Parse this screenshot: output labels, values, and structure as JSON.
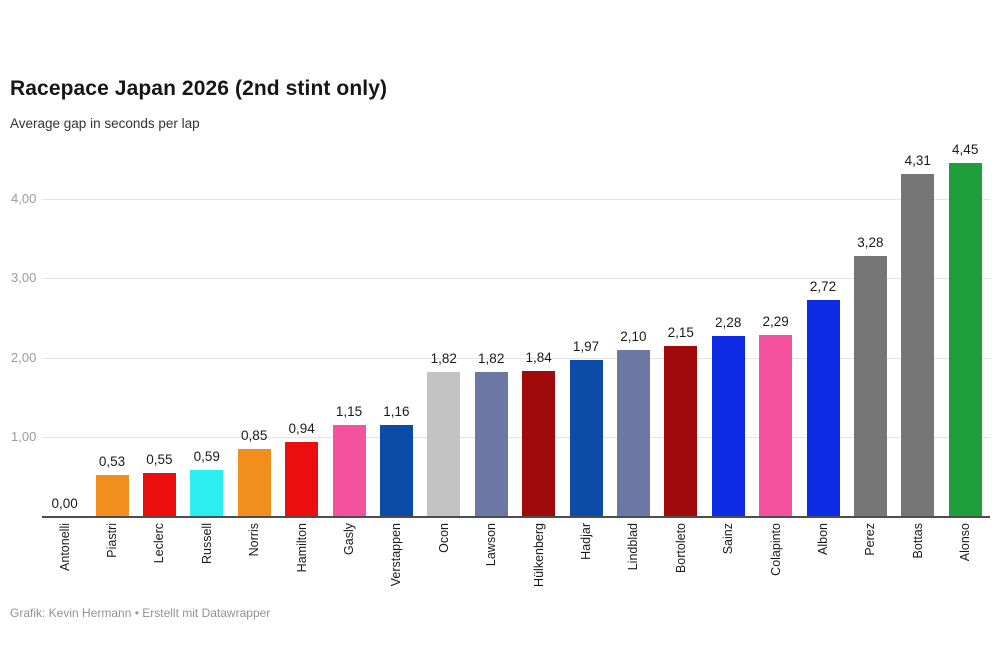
{
  "header": {
    "title": "Racepace Japan 2026 (2nd stint only)",
    "subtitle": "Average gap in seconds per lap"
  },
  "footer": {
    "credit": "Grafik: Kevin Hermann • Erstellt mit Datawrapper"
  },
  "colors": {
    "background": "#ffffff",
    "axis_line": "#4d4d4d",
    "gridline": "#e4e4e4",
    "ytick_label": "#9b9b9b",
    "value_label": "#1a1a1a",
    "xtick_label": "#1a1a1a",
    "footer_text": "#929292"
  },
  "chart_data": {
    "type": "bar",
    "title": "Racepace Japan 2026 (2nd stint only)",
    "subtitle": "Average gap in seconds per lap",
    "xlabel": "",
    "ylabel": "Average gap in seconds per lap",
    "ylim": [
      0,
      4.6
    ],
    "grid": true,
    "legend": false,
    "decimal_separator": ",",
    "categories": [
      "Antonelli",
      "Piastri",
      "Leclerc",
      "Russell",
      "Norris",
      "Hamilton",
      "Gasly",
      "Verstappen",
      "Ocon",
      "Lawson",
      "Hülkenberg",
      "Hadjar",
      "Lindblad",
      "Bortoleto",
      "Sainz",
      "Colapinto",
      "Albon",
      "Perez",
      "Bottas",
      "Alonso"
    ],
    "values": [
      0.0,
      0.53,
      0.55,
      0.59,
      0.85,
      0.94,
      1.15,
      1.16,
      1.82,
      1.82,
      1.84,
      1.97,
      2.1,
      2.15,
      2.28,
      2.29,
      2.72,
      3.28,
      4.31,
      4.45
    ],
    "value_labels": [
      "0,00",
      "0,53",
      "0,55",
      "0,59",
      "0,85",
      "0,94",
      "1,15",
      "1,16",
      "1,82",
      "1,82",
      "1,84",
      "1,97",
      "2,10",
      "2,15",
      "2,28",
      "2,29",
      "2,72",
      "3,28",
      "4,31",
      "4,45"
    ],
    "bar_colors": [
      "#2BEFEF",
      "#F28E1E",
      "#EC0E0E",
      "#2BEFEF",
      "#F28E1E",
      "#EC0E0E",
      "#F4519E",
      "#0B4CA8",
      "#C3C3C3",
      "#6B78A4",
      "#A00A0A",
      "#0B4CA8",
      "#6B78A4",
      "#A00A0A",
      "#0D2BE5",
      "#F4519E",
      "#0D2BE5",
      "#767676",
      "#767676",
      "#1F9E3C"
    ],
    "yticks": [
      {
        "value": 1,
        "label": "1,00"
      },
      {
        "value": 2,
        "label": "2,00"
      },
      {
        "value": 3,
        "label": "3,00"
      },
      {
        "value": 4,
        "label": "4,00"
      }
    ]
  }
}
